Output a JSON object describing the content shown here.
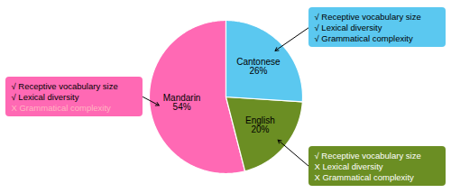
{
  "chart_data": {
    "type": "pie",
    "categories": [
      "Mandarin",
      "English",
      "Cantonese"
    ],
    "values": [
      54,
      20,
      26
    ],
    "value_labels": [
      "54%",
      "20%",
      "26%"
    ],
    "colors": [
      "#FF69B4",
      "#6B8E23",
      "#5BC8F0"
    ],
    "annotations": [
      {
        "category": "English",
        "color": "#6B8E23",
        "lines": [
          {
            "text": "√ Receptive vocabulary size",
            "color": "white"
          },
          {
            "text": "X Lexical diversity",
            "color": "white"
          },
          {
            "text": "X Grammatical complexity",
            "color": "white"
          }
        ]
      },
      {
        "category": "Mandarin",
        "color": "#FF69B4",
        "lines": [
          {
            "text": "√ Receptive vocabulary size",
            "color": "black"
          },
          {
            "text": "√ Lexical diversity",
            "color": "black"
          },
          {
            "text": "X Grammatical complexity",
            "color": "#FFB6C1"
          }
        ]
      },
      {
        "category": "Cantonese",
        "color": "#5BC8F0",
        "lines": [
          {
            "text": "√ Receptive vocabulary size",
            "color": "black"
          },
          {
            "text": "√ Lexical diversity",
            "color": "black"
          },
          {
            "text": "√ Grammatical complexity",
            "color": "black"
          }
        ]
      }
    ]
  }
}
